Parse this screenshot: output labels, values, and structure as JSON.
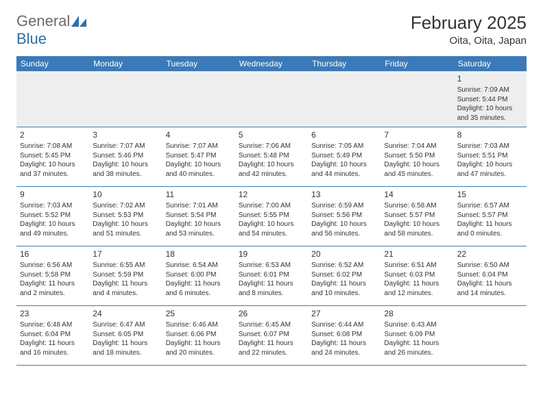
{
  "logo": {
    "text1": "General",
    "text2": "Blue"
  },
  "title": "February 2025",
  "location": "Oita, Oita, Japan",
  "colors": {
    "header_bg": "#3b7ab8",
    "header_fg": "#ffffff",
    "row_border": "#3b7ab8",
    "first_row_bg": "#eeeeee",
    "text": "#333333",
    "logo_gray": "#6b6b6b",
    "logo_blue": "#2f6fa8",
    "page_bg": "#ffffff"
  },
  "weekdays": [
    "Sunday",
    "Monday",
    "Tuesday",
    "Wednesday",
    "Thursday",
    "Friday",
    "Saturday"
  ],
  "weeks": [
    [
      {
        "day": "",
        "sunrise": "",
        "sunset": "",
        "daylight": ""
      },
      {
        "day": "",
        "sunrise": "",
        "sunset": "",
        "daylight": ""
      },
      {
        "day": "",
        "sunrise": "",
        "sunset": "",
        "daylight": ""
      },
      {
        "day": "",
        "sunrise": "",
        "sunset": "",
        "daylight": ""
      },
      {
        "day": "",
        "sunrise": "",
        "sunset": "",
        "daylight": ""
      },
      {
        "day": "",
        "sunrise": "",
        "sunset": "",
        "daylight": ""
      },
      {
        "day": "1",
        "sunrise": "Sunrise: 7:09 AM",
        "sunset": "Sunset: 5:44 PM",
        "daylight": "Daylight: 10 hours and 35 minutes."
      }
    ],
    [
      {
        "day": "2",
        "sunrise": "Sunrise: 7:08 AM",
        "sunset": "Sunset: 5:45 PM",
        "daylight": "Daylight: 10 hours and 37 minutes."
      },
      {
        "day": "3",
        "sunrise": "Sunrise: 7:07 AM",
        "sunset": "Sunset: 5:46 PM",
        "daylight": "Daylight: 10 hours and 38 minutes."
      },
      {
        "day": "4",
        "sunrise": "Sunrise: 7:07 AM",
        "sunset": "Sunset: 5:47 PM",
        "daylight": "Daylight: 10 hours and 40 minutes."
      },
      {
        "day": "5",
        "sunrise": "Sunrise: 7:06 AM",
        "sunset": "Sunset: 5:48 PM",
        "daylight": "Daylight: 10 hours and 42 minutes."
      },
      {
        "day": "6",
        "sunrise": "Sunrise: 7:05 AM",
        "sunset": "Sunset: 5:49 PM",
        "daylight": "Daylight: 10 hours and 44 minutes."
      },
      {
        "day": "7",
        "sunrise": "Sunrise: 7:04 AM",
        "sunset": "Sunset: 5:50 PM",
        "daylight": "Daylight: 10 hours and 45 minutes."
      },
      {
        "day": "8",
        "sunrise": "Sunrise: 7:03 AM",
        "sunset": "Sunset: 5:51 PM",
        "daylight": "Daylight: 10 hours and 47 minutes."
      }
    ],
    [
      {
        "day": "9",
        "sunrise": "Sunrise: 7:03 AM",
        "sunset": "Sunset: 5:52 PM",
        "daylight": "Daylight: 10 hours and 49 minutes."
      },
      {
        "day": "10",
        "sunrise": "Sunrise: 7:02 AM",
        "sunset": "Sunset: 5:53 PM",
        "daylight": "Daylight: 10 hours and 51 minutes."
      },
      {
        "day": "11",
        "sunrise": "Sunrise: 7:01 AM",
        "sunset": "Sunset: 5:54 PM",
        "daylight": "Daylight: 10 hours and 53 minutes."
      },
      {
        "day": "12",
        "sunrise": "Sunrise: 7:00 AM",
        "sunset": "Sunset: 5:55 PM",
        "daylight": "Daylight: 10 hours and 54 minutes."
      },
      {
        "day": "13",
        "sunrise": "Sunrise: 6:59 AM",
        "sunset": "Sunset: 5:56 PM",
        "daylight": "Daylight: 10 hours and 56 minutes."
      },
      {
        "day": "14",
        "sunrise": "Sunrise: 6:58 AM",
        "sunset": "Sunset: 5:57 PM",
        "daylight": "Daylight: 10 hours and 58 minutes."
      },
      {
        "day": "15",
        "sunrise": "Sunrise: 6:57 AM",
        "sunset": "Sunset: 5:57 PM",
        "daylight": "Daylight: 11 hours and 0 minutes."
      }
    ],
    [
      {
        "day": "16",
        "sunrise": "Sunrise: 6:56 AM",
        "sunset": "Sunset: 5:58 PM",
        "daylight": "Daylight: 11 hours and 2 minutes."
      },
      {
        "day": "17",
        "sunrise": "Sunrise: 6:55 AM",
        "sunset": "Sunset: 5:59 PM",
        "daylight": "Daylight: 11 hours and 4 minutes."
      },
      {
        "day": "18",
        "sunrise": "Sunrise: 6:54 AM",
        "sunset": "Sunset: 6:00 PM",
        "daylight": "Daylight: 11 hours and 6 minutes."
      },
      {
        "day": "19",
        "sunrise": "Sunrise: 6:53 AM",
        "sunset": "Sunset: 6:01 PM",
        "daylight": "Daylight: 11 hours and 8 minutes."
      },
      {
        "day": "20",
        "sunrise": "Sunrise: 6:52 AM",
        "sunset": "Sunset: 6:02 PM",
        "daylight": "Daylight: 11 hours and 10 minutes."
      },
      {
        "day": "21",
        "sunrise": "Sunrise: 6:51 AM",
        "sunset": "Sunset: 6:03 PM",
        "daylight": "Daylight: 11 hours and 12 minutes."
      },
      {
        "day": "22",
        "sunrise": "Sunrise: 6:50 AM",
        "sunset": "Sunset: 6:04 PM",
        "daylight": "Daylight: 11 hours and 14 minutes."
      }
    ],
    [
      {
        "day": "23",
        "sunrise": "Sunrise: 6:48 AM",
        "sunset": "Sunset: 6:04 PM",
        "daylight": "Daylight: 11 hours and 16 minutes."
      },
      {
        "day": "24",
        "sunrise": "Sunrise: 6:47 AM",
        "sunset": "Sunset: 6:05 PM",
        "daylight": "Daylight: 11 hours and 18 minutes."
      },
      {
        "day": "25",
        "sunrise": "Sunrise: 6:46 AM",
        "sunset": "Sunset: 6:06 PM",
        "daylight": "Daylight: 11 hours and 20 minutes."
      },
      {
        "day": "26",
        "sunrise": "Sunrise: 6:45 AM",
        "sunset": "Sunset: 6:07 PM",
        "daylight": "Daylight: 11 hours and 22 minutes."
      },
      {
        "day": "27",
        "sunrise": "Sunrise: 6:44 AM",
        "sunset": "Sunset: 6:08 PM",
        "daylight": "Daylight: 11 hours and 24 minutes."
      },
      {
        "day": "28",
        "sunrise": "Sunrise: 6:43 AM",
        "sunset": "Sunset: 6:09 PM",
        "daylight": "Daylight: 11 hours and 26 minutes."
      },
      {
        "day": "",
        "sunrise": "",
        "sunset": "",
        "daylight": ""
      }
    ]
  ]
}
